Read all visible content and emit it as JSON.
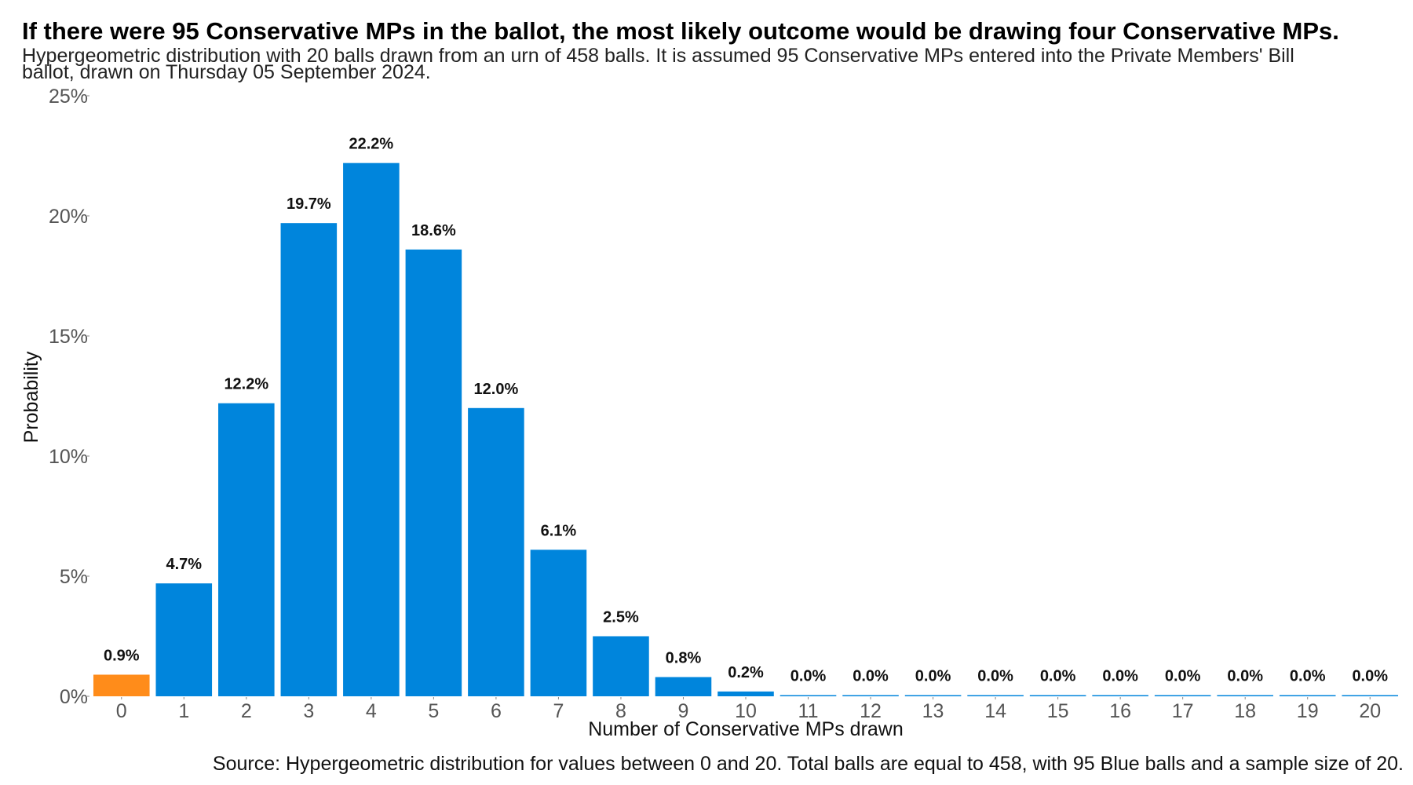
{
  "title": "If there were 95 Conservative MPs in the ballot, the most likely outcome would be drawing four Conservative MPs.",
  "subtitle": "Hypergeometric distribution with 20 balls drawn from an urn of 458 balls. It is assumed 95 Conservative MPs entered into the Private Members' Bill ballot, drawn on Thursday 05 September 2024.",
  "source": "Source: Hypergeometric distribution for values between 0 and 20. Total balls are equal to 458, with 95 Blue balls and a sample size of 20.",
  "colors": {
    "bar": "#0085dc",
    "highlight": "#ff8c1a",
    "axis_text": "#555555"
  },
  "chart_data": {
    "type": "bar",
    "title": "If there were 95 Conservative MPs in the ballot, the most likely outcome would be drawing four Conservative MPs.",
    "xlabel": "Number of Conservative MPs drawn",
    "ylabel": "Probability",
    "ylim": [
      0,
      25
    ],
    "y_unit": "%",
    "yticks": [
      "0%",
      "5%",
      "10%",
      "15%",
      "20%",
      "25%"
    ],
    "categories": [
      "0",
      "1",
      "2",
      "3",
      "4",
      "5",
      "6",
      "7",
      "8",
      "9",
      "10",
      "11",
      "12",
      "13",
      "14",
      "15",
      "16",
      "17",
      "18",
      "19",
      "20"
    ],
    "values": [
      0.9,
      4.7,
      12.2,
      19.7,
      22.2,
      18.6,
      12.0,
      6.1,
      2.5,
      0.8,
      0.2,
      0.04,
      0.0,
      0.0,
      0.0,
      0.0,
      0.0,
      0.0,
      0.0,
      0.0,
      0.0
    ],
    "data_labels": [
      "0.9%",
      "4.7%",
      "12.2%",
      "19.7%",
      "22.2%",
      "18.6%",
      "12.0%",
      "6.1%",
      "2.5%",
      "0.8%",
      "0.2%",
      "0.0%",
      "0.0%",
      "0.0%",
      "0.0%",
      "0.0%",
      "0.0%",
      "0.0%",
      "0.0%",
      "0.0%",
      "0.0%"
    ],
    "highlight_category": "0",
    "grid": false,
    "legend": "none"
  }
}
